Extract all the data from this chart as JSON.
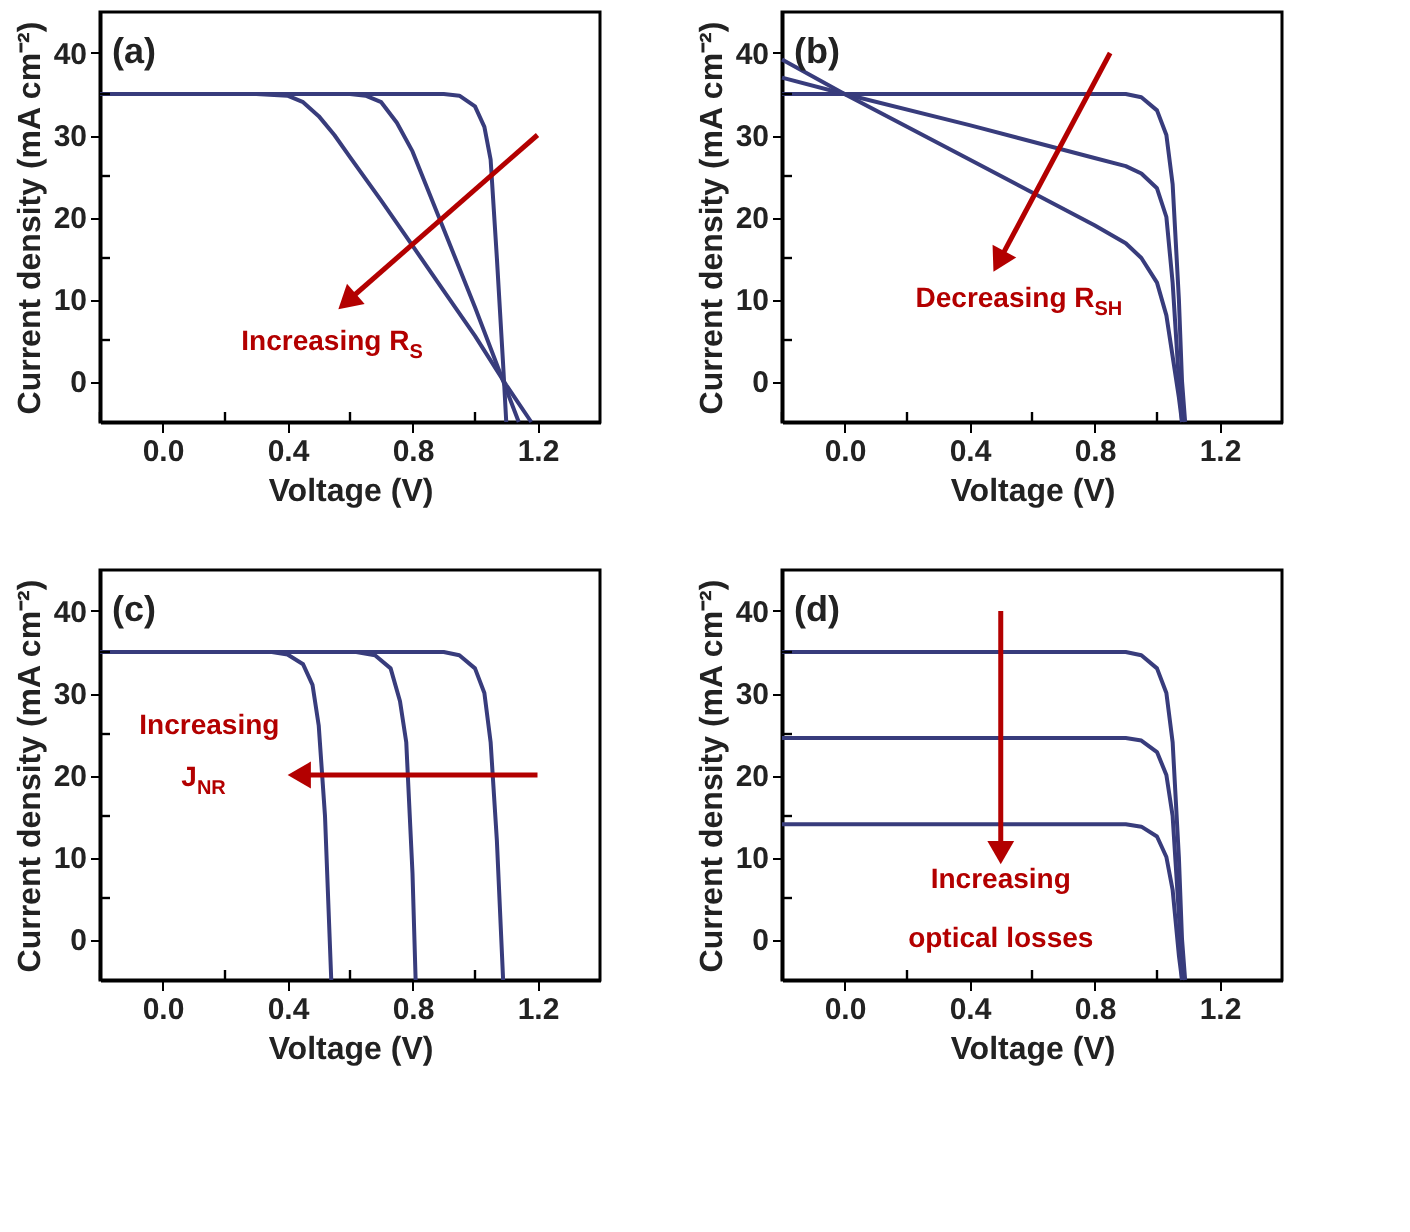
{
  "chart_data": [
    {
      "type": "line",
      "title": "(a)",
      "xlabel": "Voltage (V)",
      "ylabel": "Current density (mA cm⁻²)",
      "xlim": [
        -0.2,
        1.4
      ],
      "ylim": [
        -5,
        45
      ],
      "xticks": [
        {
          "value": -0.2,
          "label": null
        },
        {
          "value": 0,
          "label": "0.0"
        },
        {
          "value": 0.2,
          "label": null
        },
        0.4,
        {
          "value": 0.6,
          "label": null
        },
        0.8,
        {
          "value": 1.0,
          "label": null
        },
        1.2
      ],
      "yticks": [
        0,
        {
          "value": 5,
          "label": null
        },
        10,
        {
          "value": 15,
          "label": null
        },
        20,
        {
          "value": 25,
          "label": null
        },
        30,
        {
          "value": 35,
          "label": null
        },
        40
      ],
      "grid": false,
      "annotations": [
        "Increasing R$_{S}$"
      ],
      "series": [
        {
          "color": "#383c7c",
          "x": [
            -0.2,
            0.9,
            0.95,
            1.0,
            1.03,
            1.05,
            1.07,
            1.09,
            1.1
          ],
          "values": [
            35,
            35,
            34.8,
            33.5,
            31,
            27,
            15,
            2,
            -5
          ]
        },
        {
          "color": "#383c7c",
          "x": [
            -0.2,
            0.6,
            0.65,
            0.7,
            0.75,
            0.8,
            0.9,
            1.0,
            1.09,
            1.14
          ],
          "values": [
            35,
            35,
            34.8,
            34,
            31.5,
            28,
            18.5,
            9,
            0,
            -5
          ]
        },
        {
          "color": "#383c7c",
          "x": [
            -0.2,
            0.3,
            0.4,
            0.45,
            0.5,
            0.55,
            0.6,
            0.7,
            0.8,
            0.9,
            1.0,
            1.1,
            1.18
          ],
          "values": [
            35,
            35,
            34.8,
            34,
            32.3,
            30,
            27.3,
            22,
            16.5,
            11,
            5.5,
            -0.5,
            -5
          ]
        }
      ]
    },
    {
      "type": "line",
      "title": "(b)",
      "xlabel": "Voltage (V)",
      "ylabel": "Current density (mA cm⁻²)",
      "xlim": [
        -0.2,
        1.4
      ],
      "ylim": [
        -5,
        45
      ],
      "xticks": [
        {
          "value": -0.2,
          "label": null
        },
        {
          "value": 0,
          "label": "0.0"
        },
        {
          "value": 0.2,
          "label": null
        },
        0.4,
        {
          "value": 0.6,
          "label": null
        },
        0.8,
        {
          "value": 1.0,
          "label": null
        },
        1.2
      ],
      "yticks": [
        0,
        {
          "value": 5,
          "label": null
        },
        10,
        {
          "value": 15,
          "label": null
        },
        20,
        {
          "value": 25,
          "label": null
        },
        30,
        {
          "value": 35,
          "label": null
        },
        40
      ],
      "grid": false,
      "annotations": [
        "Decreasing R$_{SH}$"
      ],
      "series": [
        {
          "color": "#383c7c",
          "x": [
            -0.2,
            0.9,
            0.95,
            1.0,
            1.03,
            1.05,
            1.07,
            1.08,
            1.09
          ],
          "values": [
            35,
            35,
            34.6,
            33,
            30,
            24,
            10,
            0,
            -5
          ]
        },
        {
          "color": "#383c7c",
          "x": [
            -0.2,
            0,
            0.4,
            0.8,
            0.9,
            0.95,
            1.0,
            1.03,
            1.05,
            1.07,
            1.08
          ],
          "values": [
            37,
            35,
            31.2,
            27.2,
            26.2,
            25.3,
            23.5,
            20,
            12,
            0,
            -5
          ]
        },
        {
          "color": "#383c7c",
          "x": [
            -0.2,
            0,
            0.4,
            0.8,
            0.9,
            0.95,
            1.0,
            1.03,
            1.05,
            1.07,
            1.08
          ],
          "values": [
            39.2,
            35,
            27,
            19,
            16.8,
            15,
            12,
            8,
            3,
            -2,
            -5
          ]
        }
      ]
    },
    {
      "type": "line",
      "title": "(c)",
      "xlabel": "Voltage (V)",
      "ylabel": "Current density (mA cm⁻²)",
      "xlim": [
        -0.2,
        1.4
      ],
      "ylim": [
        -5,
        45
      ],
      "xticks": [
        {
          "value": -0.2,
          "label": null
        },
        {
          "value": 0,
          "label": "0.0"
        },
        {
          "value": 0.2,
          "label": null
        },
        0.4,
        {
          "value": 0.6,
          "label": null
        },
        0.8,
        {
          "value": 1.0,
          "label": null
        },
        1.2
      ],
      "yticks": [
        0,
        {
          "value": 5,
          "label": null
        },
        10,
        {
          "value": 15,
          "label": null
        },
        20,
        {
          "value": 25,
          "label": null
        },
        30,
        {
          "value": 35,
          "label": null
        },
        40
      ],
      "grid": false,
      "annotations": [
        "Increasing J$_{NR}$"
      ],
      "series": [
        {
          "color": "#383c7c",
          "x": [
            -0.2,
            0.35,
            0.4,
            0.45,
            0.48,
            0.5,
            0.52,
            0.53,
            0.54
          ],
          "values": [
            35,
            35,
            34.7,
            33.5,
            31,
            26,
            15,
            5,
            -5
          ]
        },
        {
          "color": "#383c7c",
          "x": [
            -0.2,
            0.62,
            0.68,
            0.73,
            0.76,
            0.78,
            0.8,
            0.81
          ],
          "values": [
            35,
            35,
            34.6,
            33,
            29,
            24,
            8,
            -5
          ]
        },
        {
          "color": "#383c7c",
          "x": [
            -0.2,
            0.9,
            0.95,
            1.0,
            1.03,
            1.05,
            1.07,
            1.09
          ],
          "values": [
            35,
            35,
            34.6,
            33,
            30,
            24,
            12,
            -5
          ]
        }
      ]
    },
    {
      "type": "line",
      "title": "(d)",
      "xlabel": "Voltage (V)",
      "ylabel": "Current density (mA cm⁻²)",
      "xlim": [
        -0.2,
        1.4
      ],
      "ylim": [
        -5,
        45
      ],
      "xticks": [
        {
          "value": -0.2,
          "label": null
        },
        {
          "value": 0,
          "label": "0.0"
        },
        {
          "value": 0.2,
          "label": null
        },
        0.4,
        {
          "value": 0.6,
          "label": null
        },
        0.8,
        {
          "value": 1.0,
          "label": null
        },
        1.2
      ],
      "yticks": [
        0,
        {
          "value": 5,
          "label": null
        },
        10,
        {
          "value": 15,
          "label": null
        },
        20,
        {
          "value": 25,
          "label": null
        },
        30,
        {
          "value": 35,
          "label": null
        },
        40
      ],
      "grid": false,
      "annotations": [
        "Increasing optical losses"
      ],
      "series": [
        {
          "color": "#383c7c",
          "x": [
            -0.2,
            0.9,
            0.95,
            1.0,
            1.03,
            1.05,
            1.07,
            1.08,
            1.09
          ],
          "values": [
            35,
            35,
            34.6,
            33,
            30,
            24,
            10,
            0,
            -5
          ]
        },
        {
          "color": "#383c7c",
          "x": [
            -0.2,
            0.9,
            0.95,
            1.0,
            1.03,
            1.05,
            1.07,
            1.08
          ],
          "values": [
            24.5,
            24.5,
            24.2,
            22.8,
            20,
            15,
            3,
            -5
          ]
        },
        {
          "color": "#383c7c",
          "x": [
            -0.2,
            0.9,
            0.95,
            1.0,
            1.03,
            1.05,
            1.07,
            1.08
          ],
          "values": [
            14,
            14,
            13.7,
            12.5,
            10,
            6,
            -2,
            -5
          ]
        }
      ]
    }
  ]
}
